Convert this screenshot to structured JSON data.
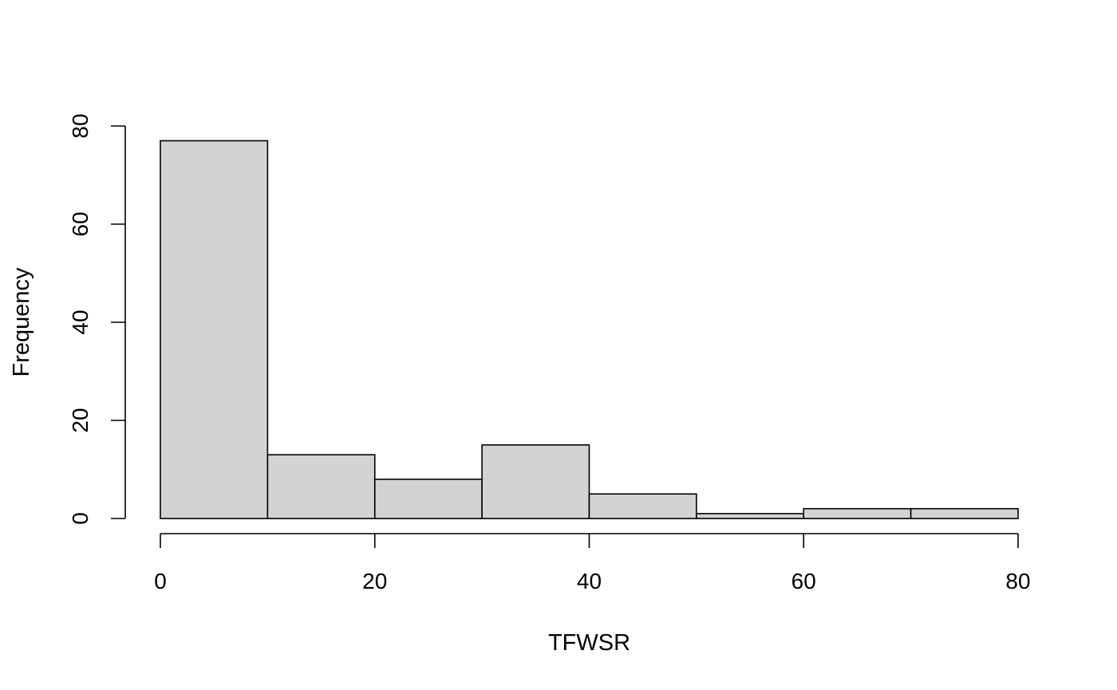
{
  "chart_data": {
    "type": "bar",
    "subtype": "histogram",
    "title": "",
    "xlabel": "TFWSR",
    "ylabel": "Frequency",
    "bins": [
      {
        "x0": 0,
        "x1": 10,
        "count": 77
      },
      {
        "x0": 10,
        "x1": 20,
        "count": 13
      },
      {
        "x0": 20,
        "x1": 30,
        "count": 8
      },
      {
        "x0": 30,
        "x1": 40,
        "count": 15
      },
      {
        "x0": 40,
        "x1": 50,
        "count": 5
      },
      {
        "x0": 50,
        "x1": 60,
        "count": 1
      },
      {
        "x0": 60,
        "x1": 70,
        "count": 2
      },
      {
        "x0": 70,
        "x1": 80,
        "count": 2
      }
    ],
    "xlim": [
      0,
      80
    ],
    "ylim": [
      0,
      80
    ],
    "xticks": [
      0,
      20,
      40,
      60,
      80
    ],
    "yticks": [
      0,
      20,
      40,
      60,
      80
    ],
    "grid": false,
    "legend": "none",
    "colors": {
      "bar_fill": "#d3d3d3",
      "bar_stroke": "#000000",
      "axis": "#000000"
    }
  }
}
